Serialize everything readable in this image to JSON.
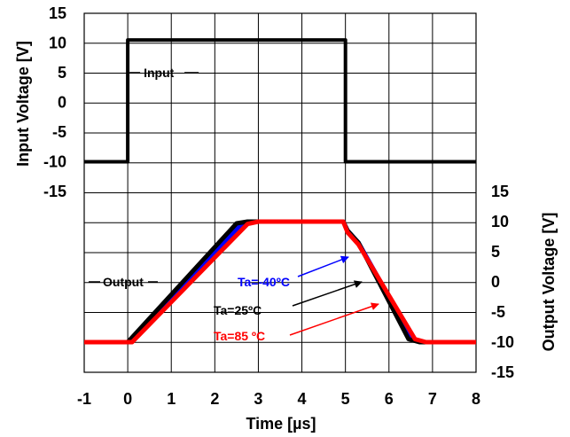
{
  "chart_data": {
    "type": "line",
    "xlabel": "Time [µs]",
    "xlim": [
      -1,
      8
    ],
    "x_ticks": [
      "-1",
      "0",
      "1",
      "2",
      "3",
      "4",
      "5",
      "6",
      "7",
      "8"
    ],
    "grid": true,
    "input_axis": {
      "ylabel": "Input Voltage [V]",
      "ylim": [
        -15,
        15
      ],
      "ticks": [
        "15",
        "10",
        "5",
        "0",
        "-5",
        "-10",
        "-15"
      ]
    },
    "output_axis": {
      "ylabel": "Output Voltage [V]",
      "ylim": [
        -15,
        15
      ],
      "ticks": [
        "15",
        "10",
        "5",
        "0",
        "-5",
        "-10",
        "-15"
      ]
    },
    "series": [
      {
        "name": "Input",
        "axis": "input",
        "color": "#000000",
        "x": [
          -1,
          0,
          0,
          5,
          5,
          8
        ],
        "y": [
          -10,
          -10,
          10.5,
          10.5,
          -10,
          -10
        ]
      },
      {
        "name": "Ta=-40ºC",
        "axis": "output",
        "color": "#0000ff",
        "x": [
          -1,
          0.05,
          2.6,
          2.9,
          4.95,
          5.05,
          5.3,
          6.55,
          6.8,
          8
        ],
        "y": [
          -10,
          -10,
          9.5,
          10,
          10,
          8.5,
          6.5,
          -9.5,
          -10,
          -10
        ]
      },
      {
        "name": "Ta=25ºC",
        "axis": "output",
        "color": "#000000",
        "x": [
          -1,
          0,
          2.5,
          2.75,
          4.95,
          5.05,
          5.3,
          6.45,
          6.7,
          8
        ],
        "y": [
          -10,
          -10,
          9.7,
          10,
          10,
          8.5,
          6.5,
          -9.5,
          -10,
          -10
        ]
      },
      {
        "name": "Ta=85 ºC",
        "axis": "output",
        "color": "#ff0000",
        "x": [
          -1,
          0.1,
          2.75,
          3.0,
          4.95,
          5.05,
          5.3,
          6.6,
          6.85,
          8
        ],
        "y": [
          -10,
          -10,
          9.6,
          10,
          10,
          8.2,
          6.2,
          -9.5,
          -10,
          -10
        ]
      }
    ],
    "annotations": [
      {
        "text": "Input",
        "color": "#000000"
      },
      {
        "text": "Output",
        "color": "#000000"
      },
      {
        "text": "Ta=-40ºC",
        "color": "#0000ff"
      },
      {
        "text": "Ta=25ºC",
        "color": "#000000"
      },
      {
        "text": "Ta=85 ºC",
        "color": "#ff0000"
      }
    ]
  }
}
